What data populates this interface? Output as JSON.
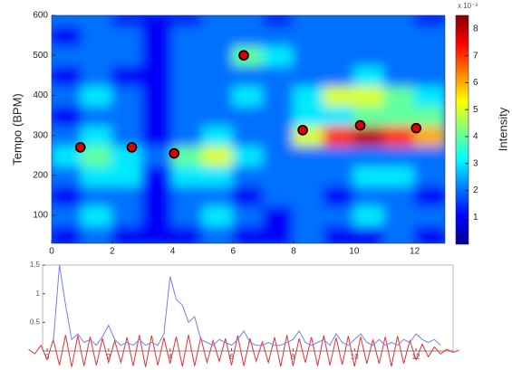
{
  "chart_data": [
    {
      "type": "heatmap",
      "y_label": "Tempo (BPM)",
      "colorbar_label": "Intensity",
      "colorbar_exponent": "x 10⁻³",
      "colormap": "jet",
      "clim": [
        0,
        8.5
      ],
      "cticks": [
        1,
        2,
        3,
        4,
        5,
        6,
        7,
        8
      ],
      "xlim": [
        0,
        13
      ],
      "ylim": [
        30,
        600
      ],
      "xticks": [
        0,
        2,
        4,
        6,
        8,
        10,
        12
      ],
      "yticks": [
        100,
        200,
        300,
        400,
        500,
        600
      ],
      "x_bins": [
        0,
        1,
        2,
        3,
        4,
        5,
        6,
        7,
        8,
        9,
        10,
        11,
        12,
        13
      ],
      "y_bins": [
        30,
        75,
        125,
        175,
        225,
        275,
        325,
        375,
        425,
        475,
        525,
        575,
        600
      ],
      "z": [
        [
          1,
          2,
          1,
          1,
          1,
          2,
          1,
          1,
          2,
          1,
          1,
          2,
          1
        ],
        [
          2,
          3,
          2,
          1,
          2,
          3,
          2,
          1,
          2,
          2,
          3,
          2,
          2
        ],
        [
          1,
          2,
          2,
          1,
          2,
          2,
          1,
          2,
          2,
          1,
          2,
          2,
          1
        ],
        [
          2,
          3,
          3,
          1,
          3,
          3,
          2,
          2,
          2,
          2,
          3,
          3,
          2
        ],
        [
          3,
          4,
          3,
          2,
          4,
          5,
          3,
          2,
          2,
          2,
          2,
          2,
          2
        ],
        [
          2,
          3,
          2,
          1,
          2,
          3,
          2,
          2,
          5,
          7,
          8,
          7,
          6
        ],
        [
          1,
          2,
          2,
          1,
          2,
          2,
          2,
          2,
          3,
          3,
          4,
          4,
          4
        ],
        [
          2,
          3,
          2,
          1,
          2,
          2,
          3,
          2,
          3,
          5,
          5,
          4,
          3
        ],
        [
          1,
          2,
          1,
          1,
          2,
          2,
          2,
          2,
          2,
          2,
          3,
          2,
          2
        ],
        [
          2,
          2,
          2,
          1,
          2,
          2,
          4,
          3,
          2,
          2,
          2,
          2,
          2
        ],
        [
          1,
          2,
          2,
          1,
          2,
          2,
          2,
          2,
          2,
          2,
          2,
          2,
          2
        ],
        [
          2,
          2,
          1,
          1,
          1,
          2,
          2,
          1,
          2,
          2,
          2,
          2,
          1
        ]
      ],
      "scatter": {
        "color": "#e00000",
        "x": [
          0.95,
          2.65,
          4.05,
          6.35,
          8.3,
          10.2,
          12.05
        ],
        "y": [
          270,
          270,
          255,
          500,
          313,
          325,
          318
        ]
      }
    },
    {
      "type": "line",
      "xlim": [
        0,
        13
      ],
      "ylim": [
        0,
        1.5
      ],
      "xticks": [
        0,
        2,
        4,
        6,
        8,
        10,
        12
      ],
      "yticks": [
        0.5,
        1,
        1.5
      ],
      "x": [
        -0.6,
        -0.4,
        -0.2,
        0,
        0.2,
        0.4,
        0.6,
        0.8,
        1,
        1.2,
        1.4,
        1.6,
        1.8,
        2,
        2.2,
        2.4,
        2.6,
        2.8,
        3,
        3.2,
        3.4,
        3.6,
        3.8,
        4,
        4.2,
        4.4,
        4.6,
        4.8,
        5,
        5.2,
        5.4,
        5.6,
        5.8,
        6,
        6.2,
        6.4,
        6.6,
        6.8,
        7,
        7.2,
        7.4,
        7.6,
        7.8,
        8,
        8.2,
        8.4,
        8.6,
        8.8,
        9,
        9.2,
        9.4,
        9.6,
        9.8,
        10,
        10.2,
        10.4,
        10.6,
        10.8,
        11,
        11.2,
        11.4,
        11.6,
        11.8,
        12,
        12.2,
        12.4,
        12.6,
        12.8,
        13,
        13.2,
        13.4
      ],
      "series": [
        {
          "color": "#e83030",
          "values": [
            0.03,
            -0.05,
            0.1,
            -0.15,
            0.2,
            -0.25,
            0.28,
            -0.28,
            0.27,
            -0.26,
            0.25,
            -0.25,
            0.22,
            -0.2,
            0.18,
            -0.2,
            0.24,
            -0.26,
            0.28,
            -0.28,
            0.27,
            -0.25,
            0.23,
            -0.22,
            0.25,
            -0.27,
            0.28,
            -0.26,
            0.24,
            -0.2,
            0.18,
            -0.18,
            0.22,
            -0.25,
            0.27,
            -0.26,
            0.22,
            -0.18,
            0.16,
            -0.2,
            0.24,
            -0.27,
            0.28,
            -0.26,
            0.22,
            -0.2,
            0.24,
            -0.26,
            0.27,
            -0.25,
            0.23,
            -0.24,
            0.26,
            -0.27,
            0.25,
            -0.22,
            0.2,
            -0.22,
            0.25,
            -0.27,
            0.26,
            -0.22,
            0.18,
            -0.15,
            0.12,
            -0.1,
            0.07,
            -0.05,
            0.03,
            -0.02,
            0.01
          ]
        },
        {
          "color": "#7080f0",
          "values": [
            null,
            null,
            null,
            null,
            0.15,
            1.5,
            0.8,
            0.2,
            0.3,
            0.15,
            0.2,
            0.1,
            0.25,
            0.45,
            0.2,
            0.1,
            0.15,
            0.1,
            0.2,
            0.1,
            0.15,
            0.1,
            0.3,
            1.3,
            0.9,
            0.8,
            0.5,
            0.6,
            0.2,
            0.15,
            0.1,
            0.2,
            0.15,
            0.1,
            0.2,
            0.35,
            0.15,
            0.1,
            0.1,
            0.15,
            0.1,
            0.1,
            0.15,
            0.2,
            0.35,
            0.15,
            0.1,
            0.15,
            0.2,
            0.1,
            0.3,
            0.15,
            0.1,
            0.2,
            0.3,
            0.15,
            0.1,
            0.2,
            0.1,
            0.15,
            0.1,
            0.2,
            0.15,
            0.3,
            0.2,
            0.15,
            0.2,
            0.1,
            null,
            null,
            null
          ]
        }
      ]
    }
  ]
}
